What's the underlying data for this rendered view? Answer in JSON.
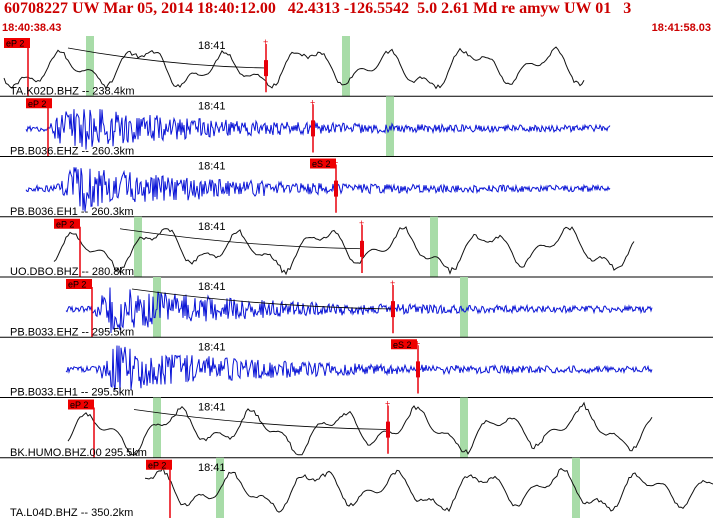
{
  "header": {
    "title": "60708227 UW Mar 05, 2014 18:40:12.00   42.4313 -126.5542  5.0 2.61 Md re amyw UW 01   3",
    "start_time": "18:40:38.43",
    "end_time": "18:41:58.03"
  },
  "colors": {
    "header_text": "#cc0000",
    "pick": "#e8000b",
    "pick_label_bg": "#ee0000",
    "pick_label_text": "#000000",
    "window": "#a8dca8",
    "trace_broadband": "#111111",
    "trace_short_period": "#0a14d6",
    "separator": "#000000"
  },
  "time_tick_label": "18:41",
  "traces": [
    {
      "label": "TA.K02D.BHZ -- 238.4km",
      "type": "broadband",
      "p_label": "eP 2",
      "s_label": "",
      "windows": [
        86,
        342
      ]
    },
    {
      "label": "PB.B036.EHZ -- 260.3km",
      "type": "short_period",
      "p_label": "eP 2",
      "s_label": "",
      "windows": [
        386
      ]
    },
    {
      "label": "PB.B036.EH1 -- 260.3km",
      "type": "short_period",
      "p_label": "",
      "s_label": "eS 2",
      "windows": []
    },
    {
      "label": "UO.DBO.BHZ -- 280.8km",
      "type": "broadband",
      "p_label": "eP 2",
      "s_label": "",
      "windows": [
        134,
        430
      ]
    },
    {
      "label": "PB.B033.EHZ -- 295.5km",
      "type": "short_period",
      "p_label": "eP 2",
      "s_label": "",
      "windows": [
        153,
        460
      ]
    },
    {
      "label": "PB.B033.EH1 -- 295.5km",
      "type": "short_period",
      "p_label": "",
      "s_label": "eS 2",
      "windows": []
    },
    {
      "label": "BK.HUMO.BHZ.00 295.5km",
      "type": "broadband",
      "p_label": "eP 2",
      "s_label": "",
      "windows": [
        153,
        460
      ]
    },
    {
      "label": "TA.L04D.BHZ -- 350.2km",
      "type": "broadband",
      "p_label": "eP 2",
      "s_label": "",
      "windows": [
        216,
        572
      ]
    }
  ]
}
